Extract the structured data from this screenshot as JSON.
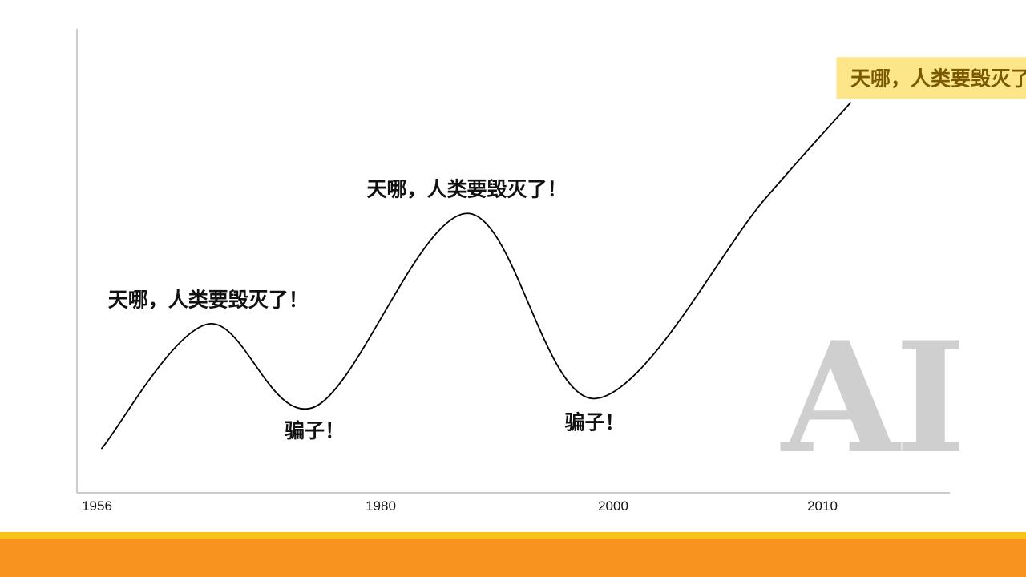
{
  "chart_data": {
    "type": "line",
    "title": "",
    "xlabel": "",
    "ylabel": "",
    "x_ticks": [
      "1956",
      "1980",
      "2000",
      "2010"
    ],
    "series": [
      {
        "values": [
          {
            "x": 1956,
            "y": 10
          },
          {
            "x": 1965,
            "y": 55
          },
          {
            "x": 1974,
            "y": 25
          },
          {
            "x": 1987,
            "y": 95
          },
          {
            "x": 1998,
            "y": 28
          },
          {
            "x": 2007,
            "y": 100
          },
          {
            "x": 2011,
            "y": 135
          }
        ]
      }
    ],
    "annotations": [
      {
        "text": "天哪，人类要毁灭了！",
        "x": 1965,
        "y": 55,
        "position": "above",
        "highlight": false
      },
      {
        "text": "骗子！",
        "x": 1974,
        "y": 25,
        "position": "below",
        "highlight": false
      },
      {
        "text": "天哪，人类要毁灭了！",
        "x": 1987,
        "y": 95,
        "position": "above",
        "highlight": false
      },
      {
        "text": "骗子！",
        "x": 1998,
        "y": 28,
        "position": "below",
        "highlight": false
      },
      {
        "text": "天哪，人类要毁灭了！",
        "x": 2011,
        "y": 135,
        "position": "above",
        "highlight": true
      }
    ],
    "grid": false,
    "legend": "none"
  },
  "watermark": {
    "text": "AI"
  },
  "colors": {
    "line": "#000000",
    "axis": "#bbbbbb",
    "highlight_bg": "#fde68a",
    "highlight_text": "#7a5a00",
    "watermark": "#cfcfcf",
    "footer_thin": "#f6c416",
    "footer_thick": "#f7931e"
  }
}
